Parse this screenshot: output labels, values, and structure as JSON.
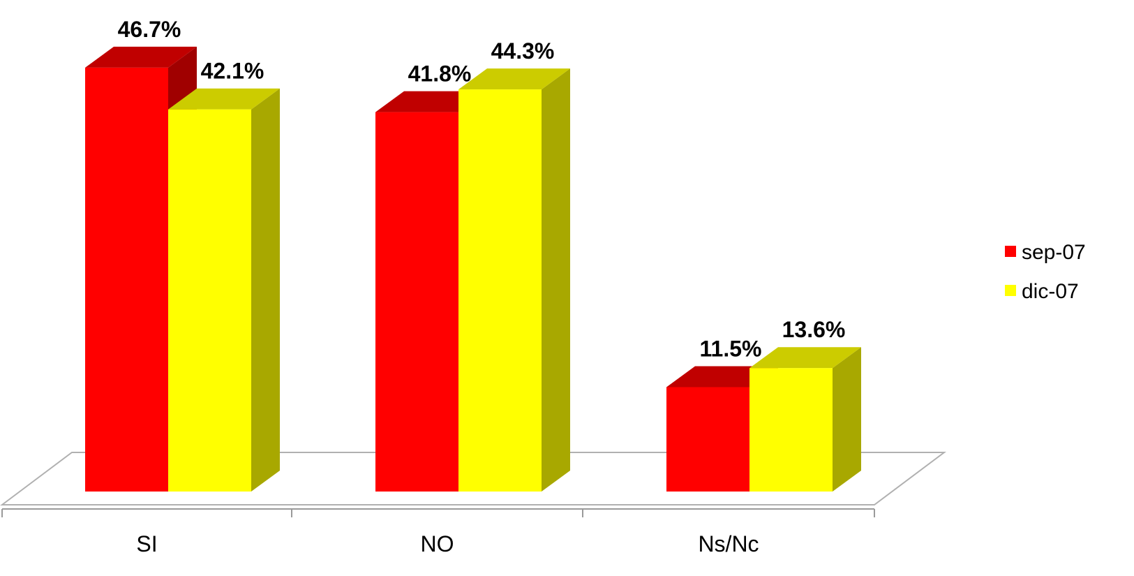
{
  "chart_data": {
    "type": "bar",
    "categories": [
      "SI",
      "NO",
      "Ns/Nc"
    ],
    "series": [
      {
        "name": "sep-07",
        "values": [
          46.7,
          41.8,
          11.5
        ],
        "value_labels": [
          "46.7%",
          "41.8%",
          "11.5%"
        ],
        "color": "#FF0000",
        "top_color": "#C00000",
        "side_color": "#A00000"
      },
      {
        "name": "dic-07",
        "values": [
          42.1,
          44.3,
          13.6
        ],
        "value_labels": [
          "42.1%",
          "44.3%",
          "13.6%"
        ],
        "color": "#FFFF00",
        "top_color": "#CCCC00",
        "side_color": "#A8A800"
      }
    ],
    "ylim": [
      0,
      50
    ],
    "grid": false,
    "legend_position": "right",
    "style": "3d-clustered-column"
  }
}
